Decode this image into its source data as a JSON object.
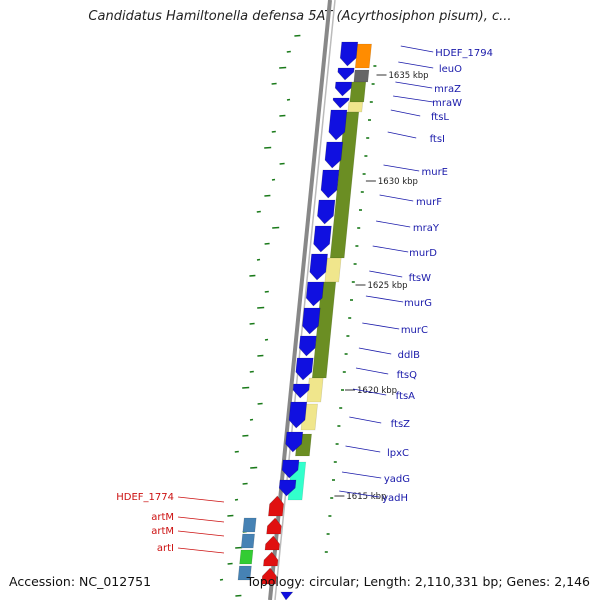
{
  "title": "Candidatus Hamiltonella defensa 5AT (Acyrthosiphon pisum), c...",
  "footer": {
    "accession": "Accession: NC_012751",
    "topology": "Topology: circular; Length: 2,110,331 bp; Genes: 2,146"
  },
  "colors": {
    "forward_gene": "#1010e0",
    "reverse_gene": "#e01010",
    "gene_label": "#1a1aaa",
    "reverse_label": "#cc1111",
    "olive_track": "#6b8e23",
    "pale_track": "#f0e68c",
    "orange_track": "#ff8c00",
    "cyan_track": "#33ffcc",
    "steel_track": "#4682b4",
    "backbone": "#888888",
    "gc_tick": "#1a7a1a"
  },
  "scale_ticks": [
    {
      "label": "1635 kbp"
    },
    {
      "label": "1630 kbp"
    },
    {
      "label": "1625 kbp"
    },
    {
      "label": "1620 kbp"
    },
    {
      "label": "1615 kbp"
    }
  ],
  "forward_genes": [
    {
      "label": "HDEF_1794"
    },
    {
      "label": "leuO"
    },
    {
      "label": "mraZ"
    },
    {
      "label": "mraW"
    },
    {
      "label": "ftsL"
    },
    {
      "label": "ftsI"
    },
    {
      "label": "murE"
    },
    {
      "label": "murF"
    },
    {
      "label": "mraY"
    },
    {
      "label": "murD"
    },
    {
      "label": "ftsW"
    },
    {
      "label": "murG"
    },
    {
      "label": "murC"
    },
    {
      "label": "ddlB"
    },
    {
      "label": "ftsQ"
    },
    {
      "label": "ftsA"
    },
    {
      "label": "ftsZ"
    },
    {
      "label": "lpxC"
    },
    {
      "label": "yadG"
    },
    {
      "label": "yadH"
    }
  ],
  "reverse_genes": [
    {
      "label": "HDEF_1774"
    },
    {
      "label": "artM"
    },
    {
      "label": "artM"
    },
    {
      "label": "artI"
    }
  ]
}
